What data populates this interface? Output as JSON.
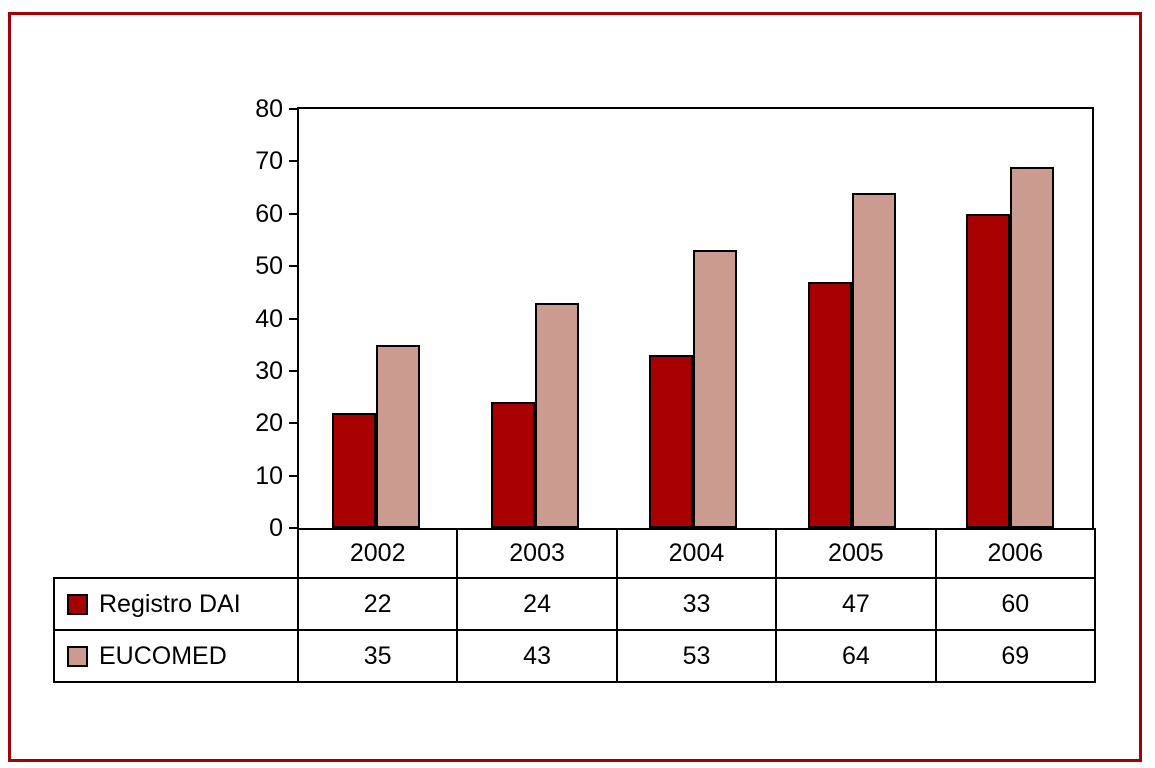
{
  "figure": {
    "frame_border_color": "#A40008",
    "background_color": "#FFFFFF",
    "axis_color": "#000000"
  },
  "chart_data": {
    "type": "bar",
    "title": "",
    "xlabel": "",
    "ylabel": "",
    "categories": [
      "2002",
      "2003",
      "2004",
      "2005",
      "2006"
    ],
    "series": [
      {
        "name": "Registro DAI",
        "color": "#A80000",
        "values": [
          22,
          24,
          33,
          47,
          60
        ]
      },
      {
        "name": "EUCOMED",
        "color": "#CC9B8F",
        "values": [
          35,
          43,
          53,
          64,
          69
        ]
      }
    ],
    "ylim": [
      0,
      80
    ],
    "ytick_step": 10,
    "yticks": [
      0,
      10,
      20,
      30,
      40,
      50,
      60,
      70,
      80
    ],
    "grid": false,
    "legend_position": "table-below"
  }
}
